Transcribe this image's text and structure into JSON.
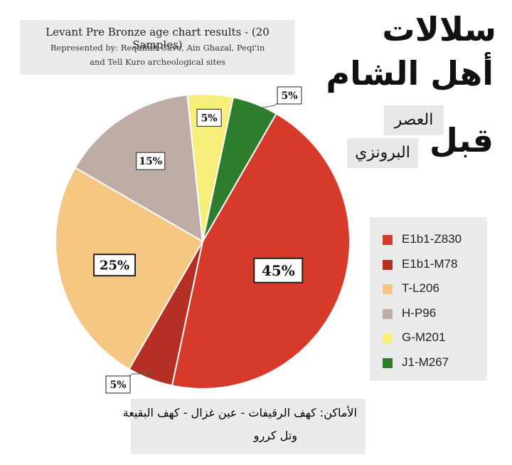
{
  "header": {
    "title": "Levant Pre Bronze age chart results  - (20 Samples)",
    "subtitle_line1": "Represented by: Reqaifait Cave, Ain Ghazal, Peqi'in",
    "subtitle_line2": "and Tell Kuro archeological sites"
  },
  "arabic_title": {
    "line1": "سلالات",
    "line2": "أهل الشام",
    "line3": "قبل",
    "word_asr": "العصر",
    "word_bronze": "البرونزي"
  },
  "locations": {
    "line1": "الأماكن: كهف الرقيفات - عين غزال - كهف البقيعة",
    "line2": "وتل كررو"
  },
  "chart_data": {
    "type": "pie",
    "title": "Levant Pre Bronze age chart results  - (20 Samples)",
    "slices": [
      {
        "name": "E1b1-Z830",
        "value": 45,
        "label": "45%",
        "color": "#d53a2a"
      },
      {
        "name": "E1b1-M78",
        "value": 5,
        "label": "5%",
        "color": "#b52f24"
      },
      {
        "name": "T-L206",
        "value": 25,
        "label": "25%",
        "color": "#f6c782"
      },
      {
        "name": "H-P96",
        "value": 15,
        "label": "15%",
        "color": "#c0aca6"
      },
      {
        "name": "G-M201",
        "value": 5,
        "label": "5%",
        "color": "#f7ef7c"
      },
      {
        "name": "J1-M267",
        "value": 5,
        "label": "5%",
        "color": "#2e7d2e"
      }
    ],
    "legend": [
      "E1b1-Z830",
      "E1b1-M78",
      "T-L206",
      "H-P96",
      "G-M201",
      "J1-M267"
    ],
    "legend_position": "right"
  }
}
